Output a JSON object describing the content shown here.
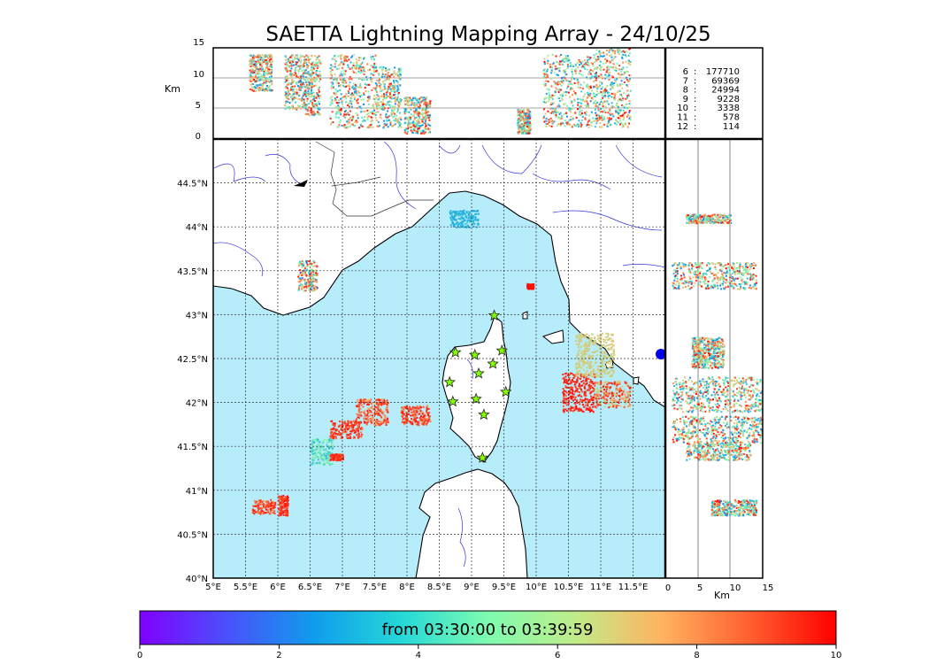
{
  "title": "SAETTA Lightning Mapping Array - 24/10/25",
  "colors": {
    "sea": "#b7ecfb",
    "land": "#ffffff",
    "coast": "#000000",
    "river": "#3333dd",
    "border": "#333333",
    "station_fill": "#7fff00",
    "highlight_count": "#ff0000"
  },
  "colorbar": {
    "label": "from 03:30:00 to 03:39:59",
    "min": 0,
    "max": 10,
    "ticks": [
      "0",
      "2",
      "4",
      "6",
      "8",
      "10"
    ],
    "colormap": "rainbow"
  },
  "station_counts": [
    {
      "stations": "6",
      "count": "177710",
      "highlight": false
    },
    {
      "stations": "7",
      "count": "69369",
      "highlight": true
    },
    {
      "stations": "8",
      "count": "24994",
      "highlight": false
    },
    {
      "stations": "9",
      "count": "9228",
      "highlight": false
    },
    {
      "stations": "10",
      "count": "3338",
      "highlight": false
    },
    {
      "stations": "11",
      "count": "578",
      "highlight": false
    },
    {
      "stations": "12",
      "count": "114",
      "highlight": false
    }
  ],
  "chart_data": [
    {
      "type": "scatter",
      "panel": "plan-view map",
      "xlabel": "",
      "ylabel": "",
      "xlim": [
        5,
        12
      ],
      "ylim": [
        40,
        45
      ],
      "grid": true,
      "x_ticks": [
        "5°E",
        "5.5°E",
        "6°E",
        "6.5°E",
        "7°E",
        "7.5°E",
        "8°E",
        "8.5°E",
        "9°E",
        "9.5°E",
        "10°E",
        "10.5°E",
        "11°E",
        "11.5°E"
      ],
      "y_ticks": [
        "40°N",
        "40.5°N",
        "41°N",
        "41.5°N",
        "42°N",
        "42.5°N",
        "43°N",
        "43.5°N",
        "44°N",
        "44.5°N"
      ],
      "stations": [
        {
          "lon": 8.75,
          "lat": 42.57
        },
        {
          "lon": 9.05,
          "lat": 42.54
        },
        {
          "lon": 9.35,
          "lat": 42.99
        },
        {
          "lon": 9.47,
          "lat": 42.59
        },
        {
          "lon": 9.33,
          "lat": 42.44
        },
        {
          "lon": 9.11,
          "lat": 42.33
        },
        {
          "lon": 8.66,
          "lat": 42.23
        },
        {
          "lon": 9.53,
          "lat": 42.12
        },
        {
          "lon": 8.71,
          "lat": 42.01
        },
        {
          "lon": 9.07,
          "lat": 42.04
        },
        {
          "lon": 9.19,
          "lat": 41.86
        },
        {
          "lon": 9.17,
          "lat": 41.37
        }
      ],
      "clusters": [
        {
          "lon_min": 5.6,
          "lon_max": 5.95,
          "lat_min": 40.74,
          "lat_max": 40.9,
          "t_min": 7.5,
          "t_max": 9.8
        },
        {
          "lon_min": 6.0,
          "lon_max": 6.15,
          "lat_min": 40.72,
          "lat_max": 40.95,
          "t_min": 8.5,
          "t_max": 9.8
        },
        {
          "lon_min": 6.5,
          "lon_max": 6.85,
          "lat_min": 41.3,
          "lat_max": 41.6,
          "t_min": 2.5,
          "t_max": 5.5
        },
        {
          "lon_min": 6.8,
          "lon_max": 7.0,
          "lat_min": 41.35,
          "lat_max": 41.42,
          "t_min": 8.5,
          "t_max": 9.8
        },
        {
          "lon_min": 6.8,
          "lon_max": 7.3,
          "lat_min": 41.6,
          "lat_max": 41.8,
          "t_min": 8.0,
          "t_max": 9.8
        },
        {
          "lon_min": 7.2,
          "lon_max": 7.7,
          "lat_min": 41.75,
          "lat_max": 42.05,
          "t_min": 7.0,
          "t_max": 9.8
        },
        {
          "lon_min": 7.9,
          "lon_max": 8.35,
          "lat_min": 41.75,
          "lat_max": 41.97,
          "t_min": 7.5,
          "t_max": 9.8
        },
        {
          "lon_min": 6.3,
          "lon_max": 6.6,
          "lat_min": 43.28,
          "lat_max": 43.62,
          "t_min": 0.8,
          "t_max": 9.8
        },
        {
          "lon_min": 9.85,
          "lon_max": 9.95,
          "lat_min": 43.3,
          "lat_max": 43.36,
          "t_min": 9.5,
          "t_max": 9.9
        },
        {
          "lon_min": 10.4,
          "lon_max": 10.9,
          "lat_min": 41.9,
          "lat_max": 42.35,
          "t_min": 8.5,
          "t_max": 9.9
        },
        {
          "lon_min": 10.9,
          "lon_max": 11.45,
          "lat_min": 41.95,
          "lat_max": 42.25,
          "t_min": 5.0,
          "t_max": 9.9
        },
        {
          "lon_min": 10.6,
          "lon_max": 11.2,
          "lat_min": 42.3,
          "lat_max": 42.8,
          "t_min": 6.0,
          "t_max": 7.0
        },
        {
          "lon_min": 8.65,
          "lon_max": 9.1,
          "lat_min": 44.0,
          "lat_max": 44.2,
          "t_min": 2.5,
          "t_max": 3.5
        }
      ]
    },
    {
      "type": "scatter",
      "panel": "longitude-altitude",
      "ylabel": "Km",
      "xlim": [
        5,
        12
      ],
      "ylim": [
        0,
        15
      ],
      "y_ticks": [
        "0",
        "5",
        "10",
        "15"
      ],
      "columns": [
        {
          "lon_min": 5.55,
          "lon_max": 5.9,
          "alt_min": 8,
          "alt_max": 14
        },
        {
          "lon_min": 6.1,
          "lon_max": 6.4,
          "alt_min": 5,
          "alt_max": 14
        },
        {
          "lon_min": 6.4,
          "lon_max": 6.65,
          "alt_min": 4,
          "alt_max": 14
        },
        {
          "lon_min": 6.8,
          "lon_max": 7.5,
          "alt_min": 2,
          "alt_max": 14
        },
        {
          "lon_min": 7.5,
          "lon_max": 7.9,
          "alt_min": 2,
          "alt_max": 12
        },
        {
          "lon_min": 7.95,
          "lon_max": 8.35,
          "alt_min": 1,
          "alt_max": 7
        },
        {
          "lon_min": 9.7,
          "lon_max": 9.9,
          "alt_min": 1,
          "alt_max": 5
        },
        {
          "lon_min": 10.1,
          "lon_max": 10.95,
          "alt_min": 2,
          "alt_max": 14
        },
        {
          "lon_min": 10.9,
          "lon_max": 11.45,
          "alt_min": 2,
          "alt_max": 15
        }
      ]
    },
    {
      "type": "scatter",
      "panel": "altitude-latitude",
      "xlabel": "Km",
      "xlim": [
        0,
        15
      ],
      "ylim": [
        40,
        45
      ],
      "x_ticks": [
        "0",
        "5",
        "10",
        "15"
      ],
      "rows": [
        {
          "lat_min": 40.72,
          "lat_max": 40.9,
          "alt_min": 7,
          "alt_max": 14
        },
        {
          "lat_min": 41.35,
          "lat_max": 41.55,
          "alt_min": 3,
          "alt_max": 13
        },
        {
          "lat_min": 41.55,
          "lat_max": 41.85,
          "alt_min": 1,
          "alt_max": 15
        },
        {
          "lat_min": 41.9,
          "lat_max": 42.3,
          "alt_min": 1,
          "alt_max": 15
        },
        {
          "lat_min": 42.4,
          "lat_max": 42.75,
          "alt_min": 4,
          "alt_max": 9
        },
        {
          "lat_min": 43.3,
          "lat_max": 43.6,
          "alt_min": 1,
          "alt_max": 14
        },
        {
          "lat_min": 44.05,
          "lat_max": 44.15,
          "alt_min": 3,
          "alt_max": 10
        }
      ]
    }
  ]
}
